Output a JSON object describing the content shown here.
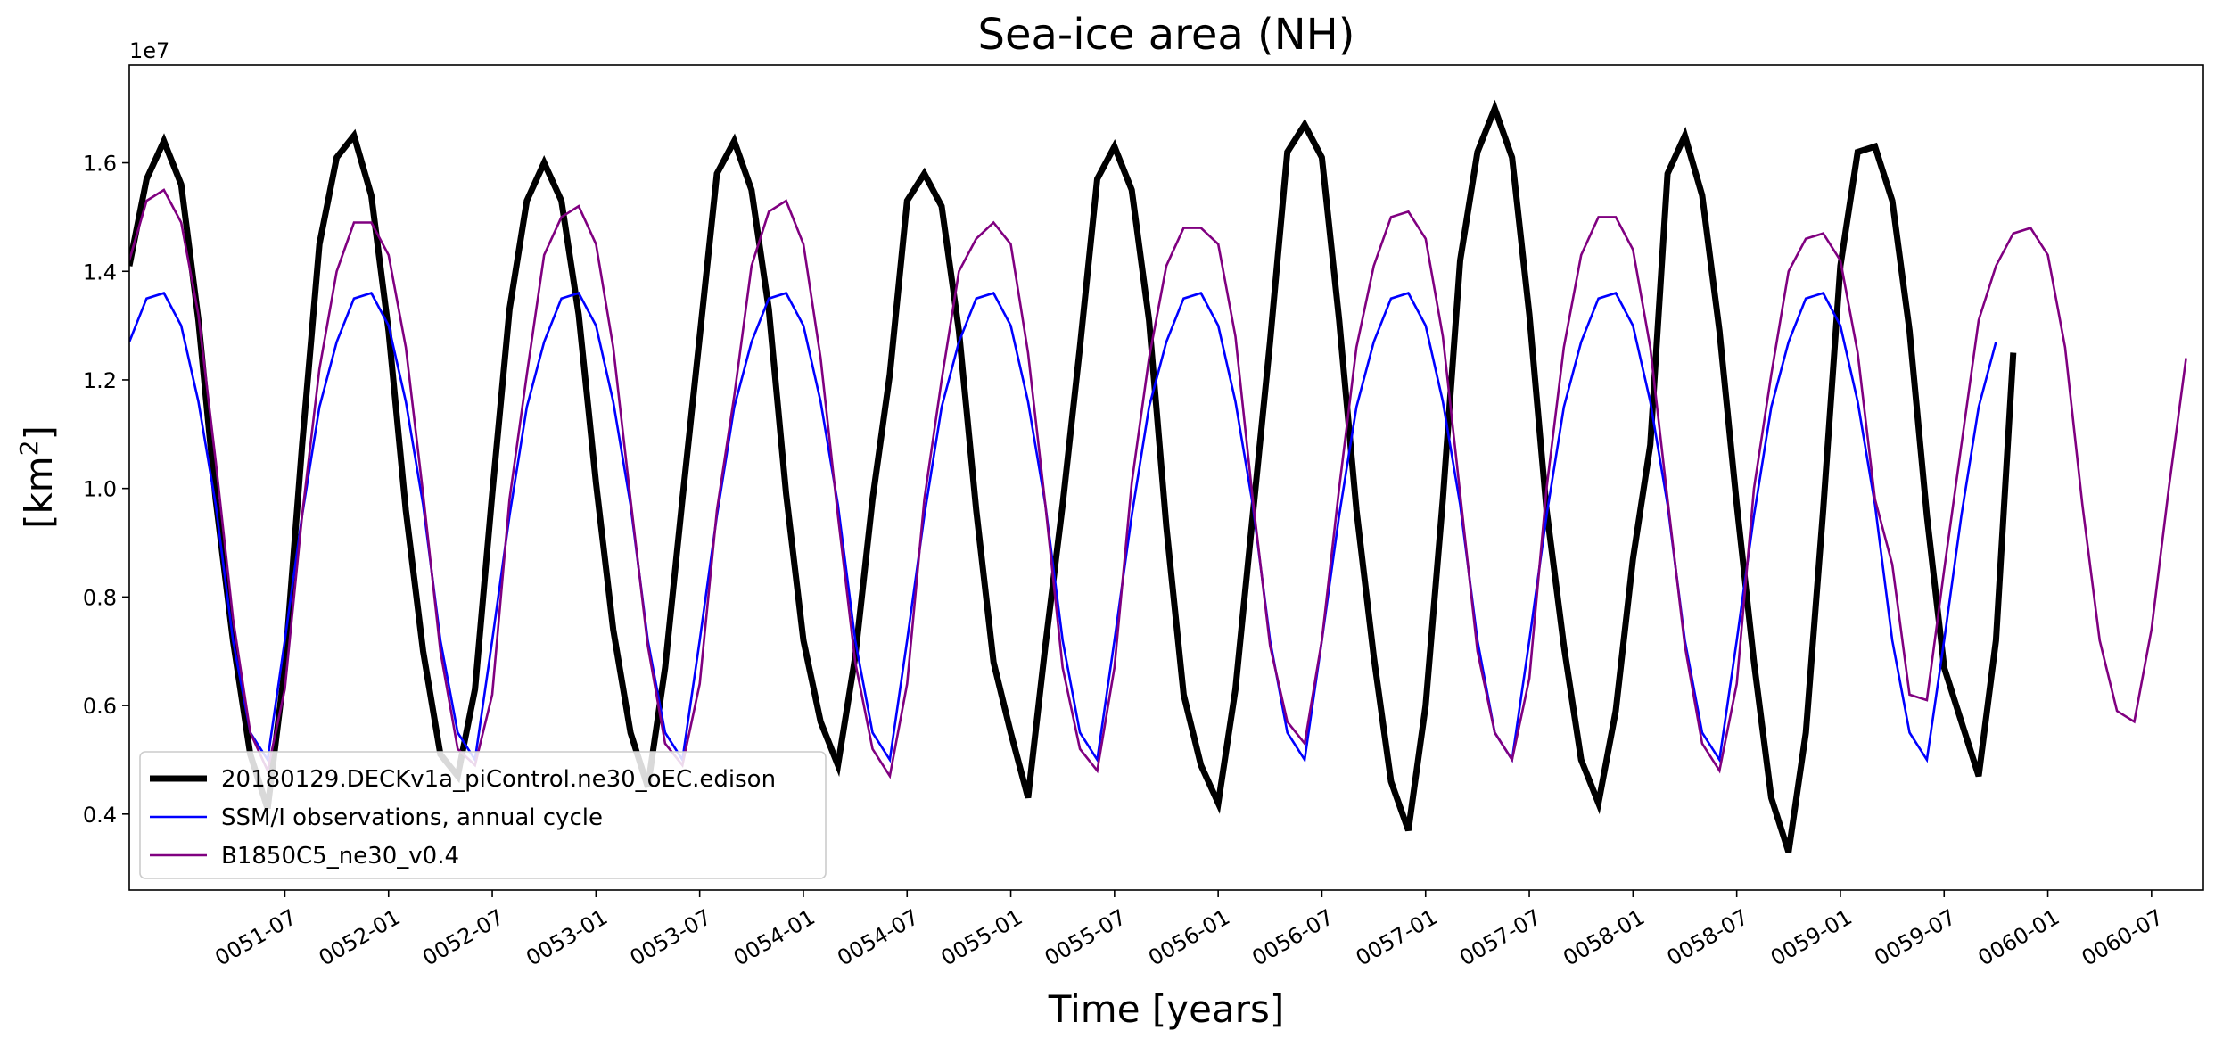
{
  "chart_data": {
    "type": "line",
    "title": "Sea-ice area (NH)",
    "xlabel": "Time [years]",
    "ylabel_main": "[km",
    "ylabel_sup": "2",
    "ylabel_close": "]",
    "y_offset_label": "1e7",
    "y_scale": 10000000,
    "xlim": [
      "0050-10",
      "0060-10"
    ],
    "ylim": [
      0.26,
      1.78
    ],
    "y_ticks": [
      0.4,
      0.6,
      0.8,
      1.0,
      1.2,
      1.4,
      1.6
    ],
    "y_tick_labels": [
      "0.4",
      "0.6",
      "0.8",
      "1.0",
      "1.2",
      "1.4",
      "1.6"
    ],
    "x_ticks": [
      "0051-07",
      "0052-01",
      "0052-07",
      "0053-01",
      "0053-07",
      "0054-01",
      "0054-07",
      "0055-01",
      "0055-07",
      "0056-01",
      "0056-07",
      "0057-01",
      "0057-07",
      "0058-01",
      "0058-07",
      "0059-01",
      "0059-07",
      "0060-01",
      "0060-07"
    ],
    "x_start": "0050-10",
    "legend_position": "lower-left",
    "grid": false,
    "series": [
      {
        "name": "20180129.DECKv1a_piControl.ne30_oEC.edison",
        "color": "#000000",
        "width": "thick",
        "values": [
          1.41,
          1.57,
          1.64,
          1.56,
          1.31,
          0.98,
          0.72,
          0.51,
          0.41,
          0.67,
          1.08,
          1.45,
          1.61,
          1.65,
          1.54,
          1.29,
          0.96,
          0.7,
          0.51,
          0.47,
          0.63,
          0.99,
          1.33,
          1.53,
          1.6,
          1.53,
          1.32,
          1.01,
          0.74,
          0.55,
          0.45,
          0.67,
          0.98,
          1.28,
          1.58,
          1.64,
          1.55,
          1.33,
          0.99,
          0.72,
          0.57,
          0.49,
          0.69,
          0.98,
          1.21,
          1.53,
          1.58,
          1.52,
          1.29,
          0.96,
          0.68,
          0.55,
          0.43,
          0.71,
          0.97,
          1.26,
          1.57,
          1.63,
          1.55,
          1.31,
          0.93,
          0.62,
          0.49,
          0.42,
          0.63,
          0.95,
          1.27,
          1.62,
          1.67,
          1.61,
          1.31,
          0.96,
          0.69,
          0.46,
          0.37,
          0.6,
          0.98,
          1.42,
          1.62,
          1.7,
          1.61,
          1.32,
          0.96,
          0.71,
          0.5,
          0.42,
          0.59,
          0.87,
          1.08,
          1.58,
          1.65,
          1.54,
          1.29,
          0.97,
          0.68,
          0.43,
          0.33,
          0.55,
          0.96,
          1.41,
          1.62,
          1.63,
          1.53,
          1.29,
          0.95,
          0.67,
          0.57,
          0.47,
          0.72,
          1.25
        ]
      },
      {
        "name": "SSM/I observations, annual cycle",
        "color": "#0000ff",
        "width": "thin",
        "values": [
          1.27,
          1.35,
          1.36,
          1.3,
          1.16,
          0.97,
          0.72,
          0.55,
          0.5,
          0.72,
          0.95,
          1.15,
          1.27,
          1.35,
          1.36,
          1.3,
          1.16,
          0.97,
          0.72,
          0.55,
          0.5,
          0.72,
          0.95,
          1.15,
          1.27,
          1.35,
          1.36,
          1.3,
          1.16,
          0.97,
          0.72,
          0.55,
          0.5,
          0.72,
          0.95,
          1.15,
          1.27,
          1.35,
          1.36,
          1.3,
          1.16,
          0.97,
          0.72,
          0.55,
          0.5,
          0.72,
          0.95,
          1.15,
          1.27,
          1.35,
          1.36,
          1.3,
          1.16,
          0.97,
          0.72,
          0.55,
          0.5,
          0.72,
          0.95,
          1.15,
          1.27,
          1.35,
          1.36,
          1.3,
          1.16,
          0.97,
          0.72,
          0.55,
          0.5,
          0.72,
          0.95,
          1.15,
          1.27,
          1.35,
          1.36,
          1.3,
          1.16,
          0.97,
          0.72,
          0.55,
          0.5,
          0.72,
          0.95,
          1.15,
          1.27,
          1.35,
          1.36,
          1.3,
          1.16,
          0.97,
          0.72,
          0.55,
          0.5,
          0.72,
          0.95,
          1.15,
          1.27,
          1.35,
          1.36,
          1.3,
          1.16,
          0.97,
          0.72,
          0.55,
          0.5,
          0.72,
          0.95,
          1.15,
          1.27
        ]
      },
      {
        "name": "B1850C5_ne30_v0.4",
        "color": "#800080",
        "width": "thin",
        "values": [
          1.42,
          1.53,
          1.55,
          1.49,
          1.32,
          1.05,
          0.76,
          0.55,
          0.48,
          0.63,
          0.95,
          1.22,
          1.4,
          1.49,
          1.49,
          1.43,
          1.26,
          0.99,
          0.7,
          0.52,
          0.49,
          0.62,
          0.98,
          1.21,
          1.43,
          1.5,
          1.52,
          1.45,
          1.26,
          0.98,
          0.71,
          0.53,
          0.49,
          0.64,
          0.96,
          1.17,
          1.41,
          1.51,
          1.53,
          1.45,
          1.24,
          0.95,
          0.68,
          0.52,
          0.47,
          0.64,
          0.98,
          1.2,
          1.4,
          1.46,
          1.49,
          1.45,
          1.25,
          0.97,
          0.67,
          0.52,
          0.48,
          0.67,
          1.01,
          1.24,
          1.41,
          1.48,
          1.48,
          1.45,
          1.28,
          0.98,
          0.71,
          0.57,
          0.53,
          0.72,
          1.0,
          1.26,
          1.41,
          1.5,
          1.51,
          1.46,
          1.28,
          0.99,
          0.7,
          0.55,
          0.5,
          0.65,
          1.0,
          1.26,
          1.43,
          1.5,
          1.5,
          1.44,
          1.26,
          0.98,
          0.71,
          0.53,
          0.48,
          0.64,
          1.0,
          1.21,
          1.4,
          1.46,
          1.47,
          1.42,
          1.25,
          0.98,
          0.86,
          0.62,
          0.61,
          0.85,
          1.08,
          1.31,
          1.41,
          1.47,
          1.48,
          1.43,
          1.26,
          0.97,
          0.72,
          0.59,
          0.57,
          0.74,
          1.0,
          1.24
        ]
      }
    ]
  }
}
